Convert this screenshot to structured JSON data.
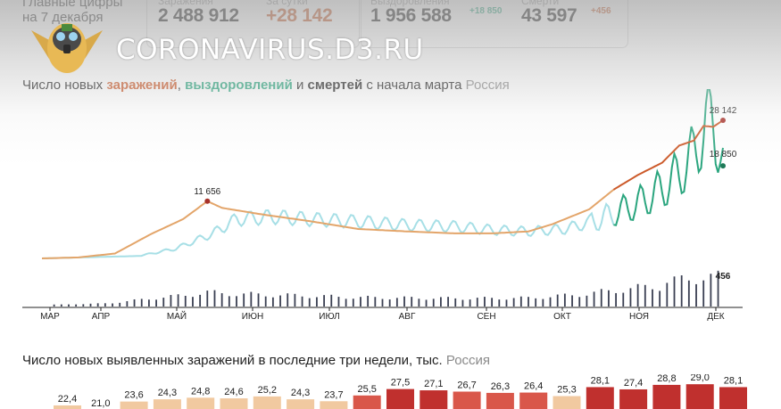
{
  "stats": {
    "main_label": "Главные цифры",
    "date_label": "на 7 декабря",
    "cases_label": "Заражения",
    "cases_value": "2 488 912",
    "daily_label": "За сутки",
    "daily_value": "+28 142",
    "recovered_label": "Выздоровления",
    "recovered_value": "1 956 588",
    "recovered_delta": "+18 850",
    "deaths_label": "Смерти",
    "deaths_value": "43 597",
    "deaths_delta": "+456"
  },
  "watermark": {
    "text": "CORONAVIRUS.D3.RU",
    "logo_icon": "owl-gasmask-icon"
  },
  "chart1": {
    "title_prefix": "Число новых ",
    "title_infections": "заражений",
    "title_comma": ", ",
    "title_recoveries": "выздоровлений",
    "title_and": " и ",
    "title_deaths": "смертей",
    "title_suffix": " с начала марта ",
    "title_region": "Россия"
  },
  "chart2": {
    "title": "Число новых выявленных заражений в последние три недели, тыс.",
    "region": "Россия"
  },
  "colors": {
    "infections": "#cc5a2a",
    "infections_early": "#e3a56a",
    "recoveries": "#2aa57e",
    "recoveries_early": "#a7dfe6",
    "deaths": "#3a3f52",
    "bar_dark": "#c0302e",
    "bar_light": "#f1c9a0"
  },
  "chart_data": [
    {
      "type": "line",
      "x_axis_labels": [
        "МАР",
        "АПР",
        "МАЙ",
        "ИЮН",
        "ИЮЛ",
        "АВГ",
        "СЕН",
        "ОКТ",
        "НОЯ",
        "ДЕК"
      ],
      "series": [
        {
          "key": "infections",
          "points": [
            [
              0,
              0
            ],
            [
              15,
              200
            ],
            [
              30,
              1000
            ],
            [
              45,
              5000
            ],
            [
              58,
              8000
            ],
            [
              68,
              11656
            ],
            [
              74,
              10300
            ],
            [
              90,
              9000
            ],
            [
              110,
              7600
            ],
            [
              130,
              6000
            ],
            [
              150,
              5500
            ],
            [
              170,
              5100
            ],
            [
              185,
              5100
            ],
            [
              200,
              5500
            ],
            [
              210,
              7000
            ],
            [
              225,
              10000
            ],
            [
              235,
              14000
            ],
            [
              245,
              17000
            ],
            [
              255,
              19500
            ],
            [
              262,
              23000
            ],
            [
              268,
              24000
            ],
            [
              272,
              27000
            ],
            [
              276,
              26800
            ],
            [
              280,
              28142
            ]
          ]
        },
        {
          "key": "recoveries",
          "points": [
            [
              0,
              0
            ],
            [
              40,
              500
            ],
            [
              55,
              2000
            ],
            [
              70,
              5000
            ],
            [
              80,
              8000
            ],
            [
              95,
              8500
            ],
            [
              110,
              8000
            ],
            [
              130,
              7500
            ],
            [
              150,
              6800
            ],
            [
              170,
              6500
            ],
            [
              185,
              5800
            ],
            [
              200,
              5500
            ],
            [
              215,
              6000
            ],
            [
              230,
              8000
            ],
            [
              245,
              11000
            ],
            [
              255,
              14000
            ],
            [
              262,
              17000
            ],
            [
              268,
              21000
            ],
            [
              272,
              26000
            ],
            [
              276,
              28000
            ],
            [
              280,
              18850
            ]
          ]
        }
      ],
      "bars": {
        "key": "deaths",
        "last_value": 456
      },
      "annotations": [
        {
          "label": "11 656",
          "series": "infections"
        },
        {
          "label": "28 142",
          "series": "infections"
        },
        {
          "label": "18 850",
          "series": "recoveries"
        },
        {
          "label": "456",
          "series": "deaths"
        }
      ]
    },
    {
      "type": "bar",
      "values": [
        22.4,
        21.0,
        23.6,
        24.3,
        24.8,
        24.6,
        25.2,
        24.3,
        23.7,
        25.5,
        27.5,
        27.1,
        26.7,
        26.3,
        26.4,
        25.3,
        28.1,
        27.4,
        28.8,
        29.0,
        28.1
      ],
      "labels": [
        "22,4",
        "21,0",
        "23,6",
        "24,3",
        "24,8",
        "24,6",
        "25,2",
        "24,3",
        "23,7",
        "25,5",
        "27,5",
        "27,1",
        "26,7",
        "26,3",
        "26,4",
        "25,3",
        "28,1",
        "27,4",
        "28,8",
        "29,0",
        "28,1"
      ]
    }
  ]
}
